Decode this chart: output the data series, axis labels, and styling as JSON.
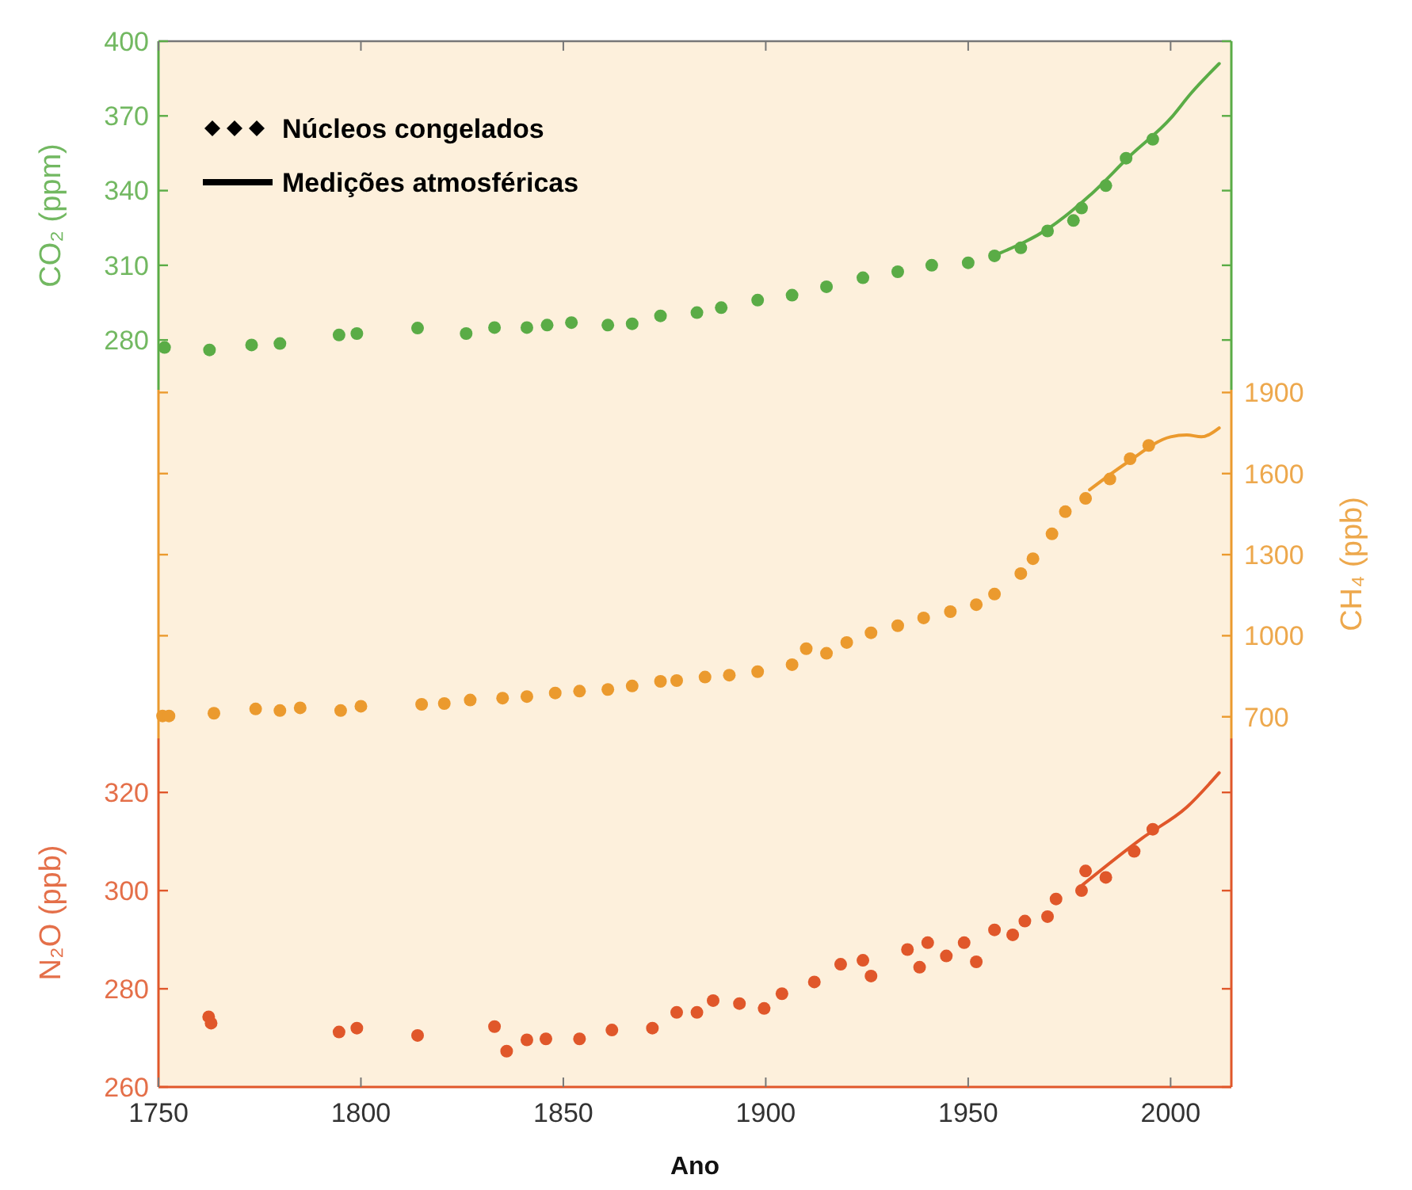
{
  "chart_data": [
    {
      "type": "scatter",
      "ylabel": "CO₂ (ppm)",
      "xlim": [
        1750,
        2015
      ],
      "ylim": [
        260,
        400
      ],
      "yticks": [
        280,
        310,
        340,
        370,
        400
      ],
      "tick_labels": "y",
      "annotations": [
        "Núcleos congelados",
        "Medições atmosféricas"
      ],
      "series": [
        {
          "marker": "circle",
          "color": "#5aac46",
          "x": [
            1751.5,
            1762.6,
            1773,
            1780,
            1794.6,
            1799,
            1814,
            1826,
            1833,
            1841,
            1846,
            1852,
            1861,
            1867,
            1874,
            1883,
            1889,
            1898,
            1906.5,
            1915,
            1924,
            1932.6,
            1941,
            1950,
            1956.5,
            1963,
            1969.6,
            1976,
            1978,
            1984,
            1989,
            1995.6
          ],
          "values": [
            277,
            276,
            278,
            278.6,
            282,
            282.6,
            284.8,
            282.6,
            285,
            285,
            286,
            287,
            286,
            286.5,
            289.7,
            291,
            293,
            296,
            298,
            301.4,
            305,
            307.4,
            310,
            311,
            313.8,
            317,
            323.8,
            328,
            333,
            342,
            353,
            360.6
          ]
        },
        {
          "type": "line",
          "color": "#5aac46",
          "x": [
            1958,
            1970,
            1980,
            1990,
            2000,
            2005,
            2012
          ],
          "values": [
            315,
            325,
            338,
            354,
            369,
            379,
            391
          ]
        }
      ]
    },
    {
      "type": "scatter",
      "y2label": "CH₄ (ppb)",
      "xlim": [
        1750,
        2015
      ],
      "y2lim": [
        620,
        1910
      ],
      "y2ticks": [
        700,
        1000,
        1300,
        1600,
        1900
      ],
      "tick_labels": "y2",
      "series": [
        {
          "marker": "circle",
          "axis": "y2",
          "color": "#eb9a2e",
          "x": [
            1751,
            1752.6,
            1763.7,
            1774,
            1780,
            1785,
            1795,
            1800,
            1815,
            1820.6,
            1827,
            1835,
            1841,
            1848,
            1854,
            1861,
            1867,
            1874,
            1878,
            1885,
            1891,
            1898,
            1906.5,
            1910,
            1915,
            1920,
            1926,
            1932.6,
            1939,
            1945.6,
            1952,
            1956.5,
            1963,
            1966,
            1970.7,
            1974,
            1979,
            1985,
            1990,
            1994.6
          ],
          "values": [
            703,
            703,
            713,
            729,
            723,
            733,
            723,
            739,
            746,
            749,
            762,
            769,
            775,
            788,
            795,
            801,
            814,
            831,
            834,
            847,
            854,
            867,
            893,
            952,
            935,
            975,
            1011,
            1037,
            1066,
            1089,
            1115,
            1154,
            1230,
            1285,
            1377,
            1459,
            1508,
            1580,
            1655,
            1704
          ]
        },
        {
          "type": "line",
          "axis": "y2",
          "color": "#eb9a2e",
          "x": [
            1980,
            1989,
            2000,
            2004,
            2007.6,
            2012
          ],
          "values": [
            1540,
            1638,
            1736,
            1743,
            1736,
            1769
          ]
        }
      ]
    },
    {
      "type": "scatter",
      "xlabel": "Ano",
      "ylabel": "N₂O (ppb)",
      "xlim": [
        1750,
        2015
      ],
      "xticks": [
        1750,
        1800,
        1850,
        1900,
        1950,
        2000
      ],
      "ylim": [
        260,
        331
      ],
      "yticks": [
        260,
        280,
        300,
        320
      ],
      "series": [
        {
          "marker": "circle",
          "color": "#e0572a",
          "x": [
            1762.4,
            1763,
            1794.6,
            1799,
            1814,
            1833,
            1836,
            1841,
            1845.7,
            1854,
            1862,
            1872,
            1878,
            1883,
            1887,
            1893.5,
            1899.6,
            1904,
            1912,
            1918.5,
            1924,
            1926,
            1935,
            1938,
            1940,
            1944.6,
            1949,
            1952,
            1956.5,
            1961,
            1964,
            1969.6,
            1971.7,
            1979,
            1978,
            1984,
            1991,
            1995.6
          ],
          "values": [
            274.3,
            273,
            271.2,
            272,
            270.5,
            272.3,
            267.3,
            269.6,
            269.8,
            269.8,
            271.6,
            272,
            275.2,
            275.2,
            277.6,
            277,
            276,
            279,
            281.4,
            285,
            285.8,
            282.6,
            288,
            284.4,
            289.4,
            286.7,
            289.4,
            285.5,
            292,
            291,
            293.8,
            294.7,
            298.3,
            304,
            300,
            302.7,
            308,
            312.5
          ]
        },
        {
          "type": "line",
          "color": "#e0572a",
          "x": [
            1978,
            1993,
            2004,
            2012
          ],
          "values": [
            301,
            310.7,
            317,
            324
          ]
        }
      ]
    }
  ]
}
